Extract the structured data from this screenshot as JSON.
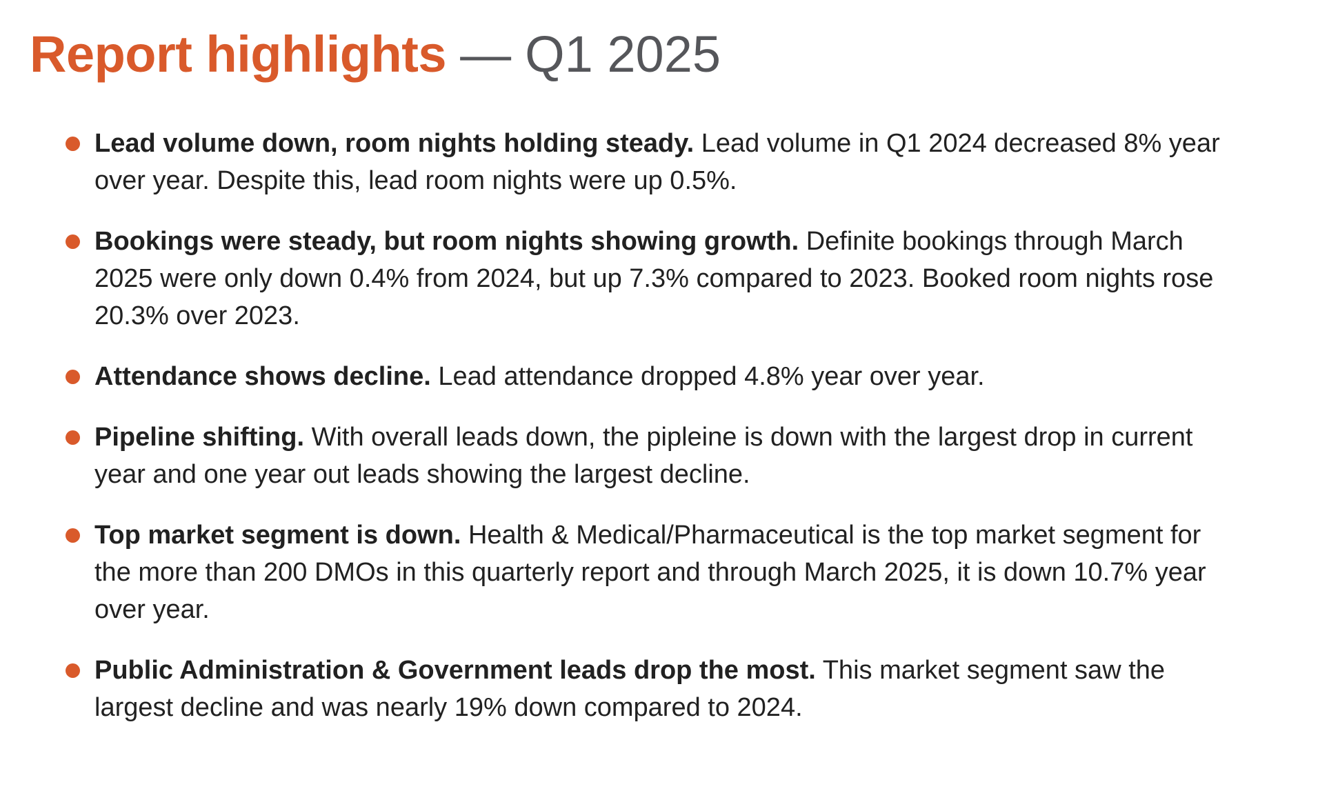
{
  "page": {
    "colors": {
      "accent": "#D95A2B",
      "title_gray": "#55565A",
      "body_text": "#212121",
      "background": "#FFFFFF"
    },
    "title": {
      "main": "Report highlights",
      "separator": "—",
      "period": "Q1 2025"
    },
    "bullets": [
      {
        "lead": "Lead volume down, room nights holding steady.",
        "text": "Lead volume in Q1 2024 decreased 8% year over year. Despite this, lead room nights were up 0.5%."
      },
      {
        "lead": "Bookings were steady, but room nights showing growth.",
        "text": "Definite bookings through March 2025 were only down 0.4% from 2024, but up 7.3% compared to 2023. Booked room nights rose 20.3% over 2023."
      },
      {
        "lead": "Attendance shows decline.",
        "text": "Lead attendance dropped 4.8% year over year."
      },
      {
        "lead": "Pipeline shifting.",
        "text": "With overall leads down, the pipleine is down with the largest drop in current year and one year out leads showing the largest decline."
      },
      {
        "lead": "Top market segment is down.",
        "text": "Health & Medical/Pharmaceutical is the top market segment for the more than 200 DMOs in this quarterly report and through March 2025, it is down 10.7% year over year."
      },
      {
        "lead": "Public Administration & Government leads drop the most.",
        "text": "This market segment saw the largest decline and was nearly 19% down compared to 2024."
      }
    ]
  }
}
